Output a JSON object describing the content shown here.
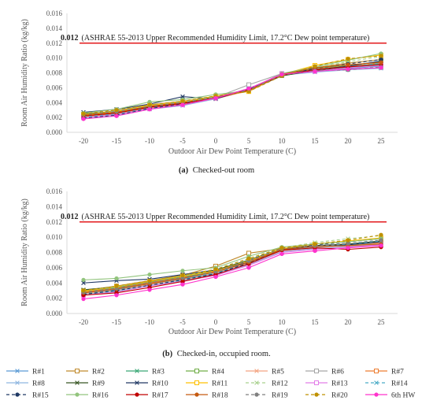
{
  "chart_data": [
    {
      "type": "line",
      "caption_tag": "(a)",
      "caption_text": "Checked-out room",
      "xlabel": "Outdoor Air Dew Point Temperature (C)",
      "ylabel": "Room Air Humidity Ratio (kg/kg)",
      "x": [
        -20,
        -15,
        -10,
        -5,
        0,
        5,
        10,
        15,
        20,
        25
      ],
      "ylim": [
        0,
        0.016
      ],
      "yticks": [
        "0.000",
        "0.002",
        "0.004",
        "0.006",
        "0.008",
        "0.010",
        "0.012",
        "0.014",
        "0.016"
      ],
      "limit_value": 0.012,
      "limit_label_num": "0.012",
      "limit_label_text": "(ASHRAE 55-2013 Upper Recommended Humidity Limit, 17.2°C Dew point temperature)",
      "series": [
        {
          "name": "R#1",
          "values": [
            0.0022,
            0.0026,
            0.0033,
            0.0039,
            0.0047,
            0.0058,
            0.0077,
            0.0083,
            0.0086,
            0.0089
          ]
        },
        {
          "name": "R#2",
          "values": [
            0.0024,
            0.0029,
            0.0037,
            0.0042,
            0.0048,
            0.0055,
            0.0077,
            0.0087,
            0.0093,
            0.0098
          ]
        },
        {
          "name": "R#3",
          "values": [
            0.0021,
            0.0025,
            0.0032,
            0.0038,
            0.0046,
            0.0057,
            0.0078,
            0.0085,
            0.0088,
            0.0092
          ]
        },
        {
          "name": "R#4",
          "values": [
            0.0023,
            0.0027,
            0.0035,
            0.004,
            0.0048,
            0.0058,
            0.0079,
            0.0086,
            0.009,
            0.0095
          ]
        },
        {
          "name": "R#5",
          "values": [
            0.002,
            0.0024,
            0.0031,
            0.0037,
            0.0045,
            0.0056,
            0.0076,
            0.0084,
            0.0087,
            0.0091
          ]
        },
        {
          "name": "R#6",
          "values": [
            0.0022,
            0.0026,
            0.0034,
            0.0039,
            0.0047,
            0.0064,
            0.0079,
            0.0082,
            0.0085,
            0.0087
          ]
        },
        {
          "name": "R#7",
          "values": [
            0.0021,
            0.0025,
            0.0033,
            0.0038,
            0.0046,
            0.0057,
            0.0078,
            0.0085,
            0.0089,
            0.0093
          ]
        },
        {
          "name": "R#8",
          "values": [
            0.0019,
            0.0023,
            0.0031,
            0.0036,
            0.0045,
            0.0059,
            0.0077,
            0.0081,
            0.0084,
            0.0086
          ]
        },
        {
          "name": "R#9",
          "values": [
            0.0025,
            0.0028,
            0.0034,
            0.0041,
            0.0046,
            0.0057,
            0.0076,
            0.0083,
            0.0087,
            0.0091
          ]
        },
        {
          "name": "R#10",
          "values": [
            0.0027,
            0.0031,
            0.0038,
            0.0048,
            0.0045,
            0.0058,
            0.0078,
            0.0084,
            0.0089,
            0.0096
          ]
        },
        {
          "name": "R#11",
          "values": [
            0.0024,
            0.0028,
            0.0036,
            0.0041,
            0.0049,
            0.0055,
            0.0078,
            0.009,
            0.0098,
            0.0104
          ]
        },
        {
          "name": "R#12",
          "values": [
            0.0023,
            0.0029,
            0.0037,
            0.0041,
            0.0048,
            0.0056,
            0.0077,
            0.0087,
            0.0095,
            0.0102
          ]
        },
        {
          "name": "R#13",
          "values": [
            0.002,
            0.0024,
            0.0032,
            0.0037,
            0.0046,
            0.0058,
            0.0079,
            0.0082,
            0.0087,
            0.009
          ]
        },
        {
          "name": "R#14",
          "values": [
            0.0021,
            0.0025,
            0.0033,
            0.0038,
            0.0046,
            0.0059,
            0.0077,
            0.0083,
            0.0088,
            0.0093
          ]
        },
        {
          "name": "R#15",
          "values": [
            0.0019,
            0.0023,
            0.0032,
            0.0038,
            0.0047,
            0.0058,
            0.0076,
            0.0086,
            0.0092,
            0.0098
          ]
        },
        {
          "name": "R#16",
          "values": [
            0.0026,
            0.0031,
            0.0041,
            0.0044,
            0.0051,
            0.0056,
            0.0079,
            0.0088,
            0.0097,
            0.0106
          ]
        },
        {
          "name": "R#17",
          "values": [
            0.0022,
            0.0026,
            0.0034,
            0.0039,
            0.0046,
            0.0057,
            0.0077,
            0.0084,
            0.0088,
            0.0091
          ]
        },
        {
          "name": "R#18",
          "values": [
            0.0023,
            0.0027,
            0.0035,
            0.004,
            0.0047,
            0.0056,
            0.0078,
            0.0087,
            0.0091,
            0.0094
          ]
        },
        {
          "name": "R#19",
          "values": [
            0.0024,
            0.0028,
            0.0035,
            0.004,
            0.0047,
            0.0057,
            0.0077,
            0.0083,
            0.0084,
            0.0088
          ]
        },
        {
          "name": "R#20",
          "values": [
            0.0025,
            0.003,
            0.0037,
            0.0042,
            0.0049,
            0.0055,
            0.0076,
            0.0089,
            0.0099,
            0.0103
          ]
        },
        {
          "name": "6th HW",
          "values": [
            0.0018,
            0.0022,
            0.0031,
            0.0037,
            0.0046,
            0.0059,
            0.0078,
            0.0082,
            0.0085,
            0.0087
          ]
        }
      ]
    },
    {
      "type": "line",
      "caption_tag": "(b)",
      "caption_text": "Checked-in, occupied room.",
      "xlabel": "Outdoor Air Dew Point Temperature (C)",
      "ylabel": "Room Air Humidity Ratio (kg/kg)",
      "x": [
        -20,
        -15,
        -10,
        -5,
        0,
        5,
        10,
        15,
        20,
        25
      ],
      "ylim": [
        0,
        0.016
      ],
      "yticks": [
        "0.000",
        "0.002",
        "0.004",
        "0.006",
        "0.008",
        "0.010",
        "0.012",
        "0.014",
        "0.016"
      ],
      "limit_value": 0.012,
      "limit_label_num": "0.012",
      "limit_label_text": "(ASHRAE 55-2013 Upper Recommended Humidity Limit, 17.2°C Dew point temperature)",
      "series": [
        {
          "name": "R#1",
          "values": [
            0.0027,
            0.0031,
            0.0039,
            0.0045,
            0.0052,
            0.0068,
            0.0083,
            0.0087,
            0.0089,
            0.0091
          ]
        },
        {
          "name": "R#2",
          "values": [
            0.003,
            0.0036,
            0.0043,
            0.005,
            0.0062,
            0.0079,
            0.0085,
            0.0088,
            0.0089,
            0.0091
          ]
        },
        {
          "name": "R#3",
          "values": [
            0.0028,
            0.0033,
            0.004,
            0.0047,
            0.0054,
            0.0068,
            0.0084,
            0.0088,
            0.009,
            0.0093
          ]
        },
        {
          "name": "R#4",
          "values": [
            0.0029,
            0.0034,
            0.0041,
            0.0048,
            0.0055,
            0.007,
            0.0085,
            0.0089,
            0.0091,
            0.0094
          ]
        },
        {
          "name": "R#5",
          "values": [
            0.0026,
            0.003,
            0.0038,
            0.0044,
            0.0051,
            0.0066,
            0.0082,
            0.0086,
            0.0089,
            0.0092
          ]
        },
        {
          "name": "R#6",
          "values": [
            0.0027,
            0.0032,
            0.0039,
            0.0046,
            0.0053,
            0.0067,
            0.0083,
            0.0087,
            0.0088,
            0.009
          ]
        },
        {
          "name": "R#7",
          "values": [
            0.0028,
            0.0033,
            0.004,
            0.0047,
            0.0054,
            0.0068,
            0.0084,
            0.0088,
            0.0091,
            0.0093
          ]
        },
        {
          "name": "R#8",
          "values": [
            0.0025,
            0.0029,
            0.0037,
            0.0043,
            0.005,
            0.0064,
            0.0081,
            0.0085,
            0.0087,
            0.0089
          ]
        },
        {
          "name": "R#9",
          "values": [
            0.0031,
            0.0035,
            0.0042,
            0.0049,
            0.0057,
            0.007,
            0.0085,
            0.0089,
            0.0091,
            0.0095
          ]
        },
        {
          "name": "R#10",
          "values": [
            0.004,
            0.0043,
            0.0045,
            0.0051,
            0.0057,
            0.0067,
            0.0084,
            0.0088,
            0.009,
            0.0094
          ]
        },
        {
          "name": "R#11",
          "values": [
            0.0029,
            0.0035,
            0.0042,
            0.0049,
            0.0056,
            0.0069,
            0.0085,
            0.0091,
            0.0095,
            0.0099
          ]
        },
        {
          "name": "R#12",
          "values": [
            0.003,
            0.0035,
            0.0043,
            0.0049,
            0.0058,
            0.0072,
            0.0086,
            0.0093,
            0.0098,
            0.0102
          ]
        },
        {
          "name": "R#13",
          "values": [
            0.0024,
            0.0028,
            0.0036,
            0.0042,
            0.005,
            0.0063,
            0.008,
            0.0084,
            0.0087,
            0.009
          ]
        },
        {
          "name": "R#14",
          "values": [
            0.0026,
            0.0031,
            0.0039,
            0.0045,
            0.0053,
            0.0067,
            0.0083,
            0.0088,
            0.0091,
            0.0095
          ]
        },
        {
          "name": "R#15",
          "values": [
            0.0025,
            0.003,
            0.0037,
            0.0044,
            0.0052,
            0.0066,
            0.0083,
            0.009,
            0.0094,
            0.0098
          ]
        },
        {
          "name": "R#16",
          "values": [
            0.0044,
            0.0046,
            0.0051,
            0.0056,
            0.006,
            0.0075,
            0.0087,
            0.0091,
            0.0094,
            0.0098
          ]
        },
        {
          "name": "R#17",
          "values": [
            0.0024,
            0.0027,
            0.0034,
            0.0042,
            0.0051,
            0.0065,
            0.0083,
            0.0086,
            0.0084,
            0.0087
          ]
        },
        {
          "name": "R#18",
          "values": [
            0.0027,
            0.0032,
            0.0039,
            0.0046,
            0.0055,
            0.0067,
            0.0084,
            0.0088,
            0.0089,
            0.0091
          ]
        },
        {
          "name": "R#19",
          "values": [
            0.0028,
            0.0033,
            0.0041,
            0.0047,
            0.0055,
            0.0069,
            0.0085,
            0.0089,
            0.0092,
            0.0096
          ]
        },
        {
          "name": "R#20",
          "values": [
            0.003,
            0.0036,
            0.0043,
            0.005,
            0.0058,
            0.0072,
            0.0086,
            0.0091,
            0.0096,
            0.0103
          ]
        },
        {
          "name": "6th HW",
          "values": [
            0.0019,
            0.0024,
            0.0031,
            0.0038,
            0.0048,
            0.006,
            0.0078,
            0.0082,
            0.0086,
            0.0089
          ]
        }
      ]
    }
  ],
  "legend": {
    "items": [
      {
        "name": "R#1",
        "color": "#5b9bd5",
        "marker": "x",
        "dash": "solid"
      },
      {
        "name": "R#2",
        "color": "#c08a2c",
        "marker": "square",
        "dash": "solid"
      },
      {
        "name": "R#3",
        "color": "#3aa876",
        "marker": "x",
        "dash": "solid"
      },
      {
        "name": "R#4",
        "color": "#70ad47",
        "marker": "square",
        "dash": "solid"
      },
      {
        "name": "R#5",
        "color": "#f4a582",
        "marker": "x",
        "dash": "solid"
      },
      {
        "name": "R#6",
        "color": "#a6a6a6",
        "marker": "square",
        "dash": "solid"
      },
      {
        "name": "R#7",
        "color": "#ed7d31",
        "marker": "square",
        "dash": "solid"
      },
      {
        "name": "R#8",
        "color": "#8fb6e0",
        "marker": "x",
        "dash": "solid"
      },
      {
        "name": "R#9",
        "color": "#375623",
        "marker": "x",
        "dash": "solid"
      },
      {
        "name": "R#10",
        "color": "#203864",
        "marker": "x",
        "dash": "solid"
      },
      {
        "name": "R#11",
        "color": "#ffc000",
        "marker": "square",
        "dash": "solid"
      },
      {
        "name": "R#12",
        "color": "#a9d18e",
        "marker": "x",
        "dash": "dash"
      },
      {
        "name": "R#13",
        "color": "#e27ee8",
        "marker": "square",
        "dash": "solid"
      },
      {
        "name": "R#14",
        "color": "#4bacc6",
        "marker": "x",
        "dash": "dash"
      },
      {
        "name": "R#15",
        "color": "#1f3864",
        "marker": "circle",
        "dash": "dash"
      },
      {
        "name": "R#16",
        "color": "#92c47d",
        "marker": "circle",
        "dash": "solid"
      },
      {
        "name": "R#17",
        "color": "#c00000",
        "marker": "circle",
        "dash": "solid"
      },
      {
        "name": "R#18",
        "color": "#c55a11",
        "marker": "circle",
        "dash": "solid"
      },
      {
        "name": "R#19",
        "color": "#7f7f7f",
        "marker": "circle",
        "dash": "dash"
      },
      {
        "name": "R#20",
        "color": "#bf9000",
        "marker": "circle",
        "dash": "dash"
      },
      {
        "name": "6th HW",
        "color": "#ff33cc",
        "marker": "circle",
        "dash": "solid"
      }
    ]
  },
  "colors": {
    "limit_line": "#e31a1c",
    "axis": "#d9d9d9",
    "grid": "#d9d9d9"
  }
}
